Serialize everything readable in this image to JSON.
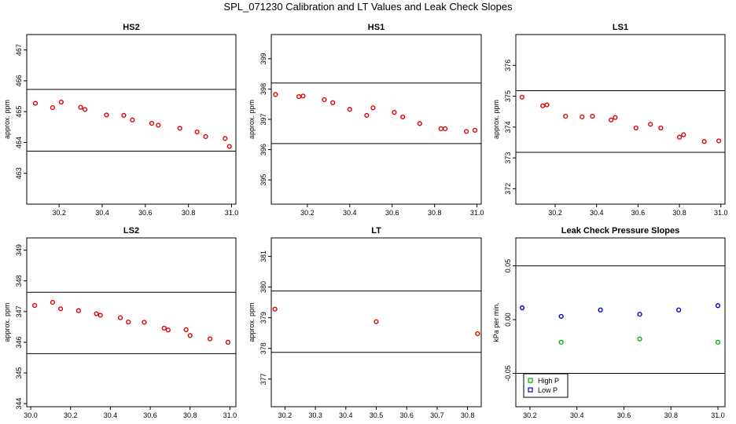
{
  "figure_title": "SPL_071230  Calibration and LT Values and Leak Check Slopes",
  "chart_data": [
    {
      "type": "scatter",
      "title": "HS2",
      "xlabel": "",
      "ylabel": "approx. ppm",
      "xlim": [
        30.05,
        31.02
      ],
      "ylim": [
        462.0,
        467.5
      ],
      "xticks": [
        30.2,
        30.4,
        30.6,
        30.8,
        31.0
      ],
      "xtick_labels": [
        "30.2",
        "30.4",
        "30.6",
        "30.8",
        "31.0"
      ],
      "yticks": [
        463,
        464,
        465,
        466,
        467
      ],
      "ytick_labels": [
        "463",
        "464",
        "465",
        "466",
        "467"
      ],
      "hlines": [
        465.72,
        463.72
      ],
      "series": [
        {
          "color": "#e00000",
          "x": [
            30.09,
            30.17,
            30.21,
            30.3,
            30.32,
            30.42,
            30.5,
            30.54,
            30.63,
            30.66,
            30.76,
            30.84,
            30.88,
            30.97,
            30.99
          ],
          "y": [
            465.27,
            465.13,
            465.31,
            465.14,
            465.07,
            464.89,
            464.88,
            464.73,
            464.62,
            464.56,
            464.46,
            464.34,
            464.19,
            464.13,
            463.87
          ]
        }
      ]
    },
    {
      "type": "scatter",
      "title": "HS1",
      "xlabel": "",
      "ylabel": "approx. ppm",
      "xlim": [
        30.03,
        31.02
      ],
      "ylim": [
        394.2,
        399.8
      ],
      "xticks": [
        30.2,
        30.4,
        30.6,
        30.8,
        31.0
      ],
      "xtick_labels": [
        "30.2",
        "30.4",
        "30.6",
        "30.8",
        "31.0"
      ],
      "yticks": [
        395,
        396,
        397,
        398,
        399
      ],
      "ytick_labels": [
        "395",
        "396",
        "397",
        "398",
        "399"
      ],
      "hlines": [
        398.2,
        396.2
      ],
      "series": [
        {
          "color": "#e00000",
          "x": [
            30.05,
            30.16,
            30.18,
            30.28,
            30.32,
            30.4,
            30.48,
            30.51,
            30.61,
            30.65,
            30.73,
            30.83,
            30.85,
            30.95,
            30.99
          ],
          "y": [
            397.82,
            397.75,
            397.77,
            397.65,
            397.55,
            397.33,
            397.13,
            397.38,
            397.23,
            397.08,
            396.86,
            396.69,
            396.69,
            396.6,
            396.64
          ]
        }
      ]
    },
    {
      "type": "scatter",
      "title": "LS1",
      "xlabel": "",
      "ylabel": "approx. ppm",
      "xlim": [
        30.01,
        31.02
      ],
      "ylim": [
        371.5,
        377.0
      ],
      "xticks": [
        30.2,
        30.4,
        30.6,
        30.8,
        31.0
      ],
      "xtick_labels": [
        "30.2",
        "30.4",
        "30.6",
        "30.8",
        "31.0"
      ],
      "yticks": [
        372,
        373,
        374,
        375,
        376
      ],
      "ytick_labels": [
        "372",
        "373",
        "374",
        "375",
        "376"
      ],
      "hlines": [
        375.18,
        373.18
      ],
      "series": [
        {
          "color": "#e00000",
          "x": [
            30.04,
            30.14,
            30.16,
            30.25,
            30.33,
            30.38,
            30.47,
            30.49,
            30.59,
            30.66,
            30.71,
            30.8,
            30.82,
            30.92,
            30.99
          ],
          "y": [
            374.97,
            374.69,
            374.72,
            374.35,
            374.33,
            374.35,
            374.23,
            374.31,
            373.97,
            374.09,
            373.97,
            373.67,
            373.75,
            373.53,
            373.55
          ]
        }
      ]
    },
    {
      "type": "scatter",
      "title": "LS2",
      "xlabel": "",
      "ylabel": "approx. ppm",
      "xlim": [
        29.98,
        31.03
      ],
      "ylim": [
        343.9,
        349.4
      ],
      "xticks": [
        30.0,
        30.2,
        30.4,
        30.6,
        30.8,
        31.0
      ],
      "xtick_labels": [
        "30.0",
        "30.2",
        "30.4",
        "30.6",
        "30.8",
        "31.0"
      ],
      "yticks": [
        344,
        345,
        346,
        347,
        348,
        349
      ],
      "ytick_labels": [
        "344",
        "345",
        "346",
        "347",
        "348",
        "349"
      ],
      "hlines": [
        347.63,
        345.63
      ],
      "series": [
        {
          "color": "#e00000",
          "x": [
            30.02,
            30.11,
            30.15,
            30.24,
            30.33,
            30.35,
            30.45,
            30.49,
            30.57,
            30.67,
            30.69,
            30.78,
            30.8,
            30.9,
            30.99
          ],
          "y": [
            347.2,
            347.3,
            347.09,
            347.03,
            346.93,
            346.88,
            346.8,
            346.66,
            346.65,
            346.46,
            346.4,
            346.41,
            346.22,
            346.11,
            346.0
          ]
        }
      ]
    },
    {
      "type": "scatter",
      "title": "LT",
      "xlabel": "",
      "ylabel": "approx. ppm",
      "xlim": [
        30.155,
        30.845
      ],
      "ylim": [
        376.1,
        381.6
      ],
      "xticks": [
        30.2,
        30.3,
        30.4,
        30.5,
        30.6,
        30.7,
        30.8
      ],
      "xtick_labels": [
        "30.2",
        "30.3",
        "30.4",
        "30.5",
        "30.6",
        "30.7",
        "30.8"
      ],
      "yticks": [
        377,
        378,
        379,
        380,
        381
      ],
      "ytick_labels": [
        "377",
        "378",
        "379",
        "380",
        "381"
      ],
      "hlines": [
        379.87,
        377.87
      ],
      "series": [
        {
          "color": "#e00000",
          "x": [
            30.167,
            30.5,
            30.833
          ],
          "y": [
            379.28,
            378.87,
            378.48
          ]
        }
      ]
    },
    {
      "type": "scatter",
      "title": "Leak Check Pressure Slopes",
      "xlabel": "",
      "ylabel": "kPa per min.",
      "xlim": [
        30.14,
        31.03
      ],
      "ylim": [
        -0.081,
        0.076
      ],
      "xticks": [
        30.2,
        30.4,
        30.6,
        30.8,
        31.0
      ],
      "xtick_labels": [
        "30.2",
        "30.4",
        "30.6",
        "30.8",
        "31.0"
      ],
      "yticks": [
        -0.05,
        0.0,
        0.05
      ],
      "ytick_labels": [
        "-0.05",
        "0.00",
        "0.05"
      ],
      "hlines": [
        0.05,
        -0.05
      ],
      "legend": {
        "position": "bottom-left"
      },
      "series": [
        {
          "name": "High P",
          "color": "#00b000",
          "x": [
            30.333,
            30.667,
            31.0
          ],
          "y": [
            -0.021,
            -0.018,
            -0.021
          ]
        },
        {
          "name": "Low P",
          "color": "#0000cc",
          "x": [
            30.167,
            30.333,
            30.5,
            30.667,
            30.833,
            31.0
          ],
          "y": [
            0.011,
            0.003,
            0.009,
            0.005,
            0.009,
            0.013
          ]
        }
      ]
    }
  ]
}
